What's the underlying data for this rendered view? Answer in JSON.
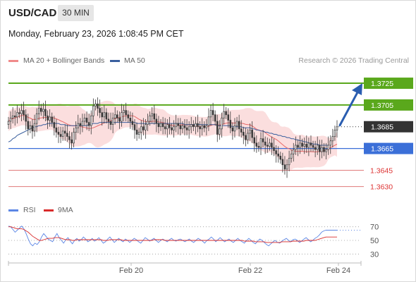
{
  "header": {
    "symbol": "USD/CAD",
    "timeframe": "30 MIN",
    "datetime": "Monday, February 23, 2026 1:08:45 PM CET"
  },
  "legend": {
    "ma20_label": "MA 20 + Bollinger Bands",
    "ma50_label": "MA 50",
    "credit": "Research © 2026 Trading Central"
  },
  "rsi_legend": {
    "rsi_label": "RSI",
    "ma_label": "9MA"
  },
  "colors": {
    "resistance": "#5aa81c",
    "support": "#3b6fd8",
    "minor_support": "#e07a7a",
    "current": "#333333",
    "candle": "#3a3a3a",
    "ma20": "#e86a6a",
    "ma50": "#3a5f9e",
    "bands": "#fbdada",
    "rsi": "#5b86e5",
    "rsi_ma": "#d92a2a",
    "arrow": "#2a5db0"
  },
  "chart_data": [
    {
      "type": "candlestick",
      "title": "USD/CAD 30 MIN",
      "ylim": [
        1.362,
        1.3738
      ],
      "x_ticks": [
        "Feb 20",
        "Feb 22",
        "Feb 24"
      ],
      "levels": [
        {
          "value": 1.3725,
          "label": "1.3725",
          "kind": "resistance",
          "style": "label"
        },
        {
          "value": 1.3705,
          "label": "1.3705",
          "kind": "resistance",
          "style": "label"
        },
        {
          "value": 1.3685,
          "label": "1.3685",
          "kind": "current",
          "style": "label"
        },
        {
          "value": 1.3665,
          "label": "1.3665",
          "kind": "support",
          "style": "label"
        },
        {
          "value": 1.3645,
          "label": "1.3645",
          "kind": "minor_support",
          "style": "text"
        },
        {
          "value": 1.363,
          "label": "1.3630",
          "kind": "minor_support",
          "style": "text"
        }
      ],
      "candles_close": [
        1.369,
        1.3693,
        1.3695,
        1.3694,
        1.3698,
        1.3697,
        1.37,
        1.3696,
        1.369,
        1.3683,
        1.3686,
        1.3681,
        1.3688,
        1.3697,
        1.3702,
        1.3699,
        1.3701,
        1.3695,
        1.3691,
        1.3694,
        1.3689,
        1.3684,
        1.368,
        1.3678,
        1.3676,
        1.3681,
        1.3679,
        1.3676,
        1.3673,
        1.367,
        1.368,
        1.3684,
        1.3688,
        1.3686,
        1.369,
        1.3693,
        1.3689,
        1.3686,
        1.3695,
        1.3704,
        1.3706,
        1.3702,
        1.3698,
        1.3694,
        1.3698,
        1.3692,
        1.369,
        1.3687,
        1.3693,
        1.3696,
        1.3693,
        1.369,
        1.3698,
        1.37,
        1.3696,
        1.3693,
        1.369,
        1.3687,
        1.3682,
        1.3678,
        1.368,
        1.3685,
        1.3682,
        1.3687,
        1.369,
        1.3695,
        1.3697,
        1.3692,
        1.3688,
        1.3685,
        1.3688,
        1.3685,
        1.3683,
        1.3687,
        1.3684,
        1.3682,
        1.3685,
        1.3688,
        1.3686,
        1.3683,
        1.3686,
        1.3684,
        1.3682,
        1.3685,
        1.3687,
        1.3685,
        1.3688,
        1.3685,
        1.3683,
        1.3686,
        1.3684,
        1.3686,
        1.3694,
        1.37,
        1.3696,
        1.369,
        1.3678,
        1.3683,
        1.3693,
        1.3699,
        1.3696,
        1.3691,
        1.3684,
        1.3681,
        1.3686,
        1.369,
        1.3683,
        1.368,
        1.3677,
        1.3673,
        1.3679,
        1.3682,
        1.3675,
        1.367,
        1.3667,
        1.3666,
        1.3674,
        1.3671,
        1.3668,
        1.3667,
        1.367,
        1.3666,
        1.3663,
        1.366,
        1.3658,
        1.3655,
        1.365,
        1.3646,
        1.365,
        1.3656,
        1.366,
        1.3664,
        1.3668,
        1.3666,
        1.367,
        1.3667,
        1.3669,
        1.3666,
        1.367,
        1.3668,
        1.3666,
        1.3664,
        1.3668,
        1.3662,
        1.3666,
        1.3662,
        1.3664,
        1.3668,
        1.3672,
        1.3676,
        1.3682,
        1.3685
      ],
      "ma50": [
        1.3671,
        1.3672,
        1.3674,
        1.3675,
        1.3677,
        1.3678,
        1.3679,
        1.368,
        1.3681,
        1.3682,
        1.3683,
        1.3684,
        1.3685,
        1.3685,
        1.3686,
        1.3686,
        1.3687,
        1.3687,
        1.3688,
        1.3688,
        1.3688,
        1.3688,
        1.3688,
        1.3688,
        1.3687,
        1.3687,
        1.3687,
        1.3686,
        1.3686,
        1.3686,
        1.3686,
        1.3686,
        1.3686,
        1.3686,
        1.3686,
        1.3686,
        1.3686,
        1.3687,
        1.3687,
        1.3688,
        1.3688,
        1.3688,
        1.3689,
        1.3689,
        1.3689,
        1.3689,
        1.3689,
        1.3689,
        1.3689,
        1.3689,
        1.3689,
        1.3689,
        1.3689,
        1.3689,
        1.3689,
        1.3689,
        1.3689,
        1.3689,
        1.3689,
        1.3688,
        1.3688,
        1.3688,
        1.3688,
        1.3688,
        1.3688,
        1.3688,
        1.3688,
        1.3688,
        1.3688,
        1.3688,
        1.3688,
        1.3688,
        1.3688,
        1.3688,
        1.3688,
        1.3688,
        1.3688,
        1.3688,
        1.3688,
        1.3688,
        1.3688,
        1.3687,
        1.3687,
        1.3687,
        1.3687,
        1.3687,
        1.3687,
        1.3687,
        1.3687,
        1.3687,
        1.3687,
        1.3687,
        1.3687,
        1.3687,
        1.3687,
        1.3687,
        1.3686,
        1.3686,
        1.3686,
        1.3686,
        1.3686,
        1.3686,
        1.3686,
        1.3685,
        1.3685,
        1.3685,
        1.3685,
        1.3685,
        1.3684,
        1.3684,
        1.3684,
        1.3684,
        1.3683,
        1.3683,
        1.3682,
        1.3682,
        1.3681,
        1.3681,
        1.368,
        1.368,
        1.3679,
        1.3679,
        1.3678,
        1.3678,
        1.3677,
        1.3677,
        1.3676,
        1.3676,
        1.3675,
        1.3675,
        1.3674,
        1.3674,
        1.3673,
        1.3673,
        1.3672,
        1.3672,
        1.3671,
        1.3671,
        1.367,
        1.367,
        1.3669,
        1.3669,
        1.3669,
        1.3668,
        1.3668,
        1.3668,
        1.3668,
        1.3668
      ]
    },
    {
      "type": "line",
      "title": "RSI",
      "ylim": [
        20,
        80
      ],
      "y_ticks": [
        70,
        50,
        30
      ],
      "series": [
        {
          "name": "RSI",
          "values": [
            71,
            70,
            66,
            62,
            65,
            68,
            71,
            67,
            60,
            52,
            45,
            42,
            46,
            44,
            48,
            55,
            60,
            56,
            52,
            50,
            48,
            55,
            60,
            54,
            50,
            46,
            51,
            54,
            49,
            45,
            50,
            53,
            49,
            51,
            55,
            52,
            48,
            50,
            53,
            49,
            51,
            54,
            50,
            46,
            48,
            52,
            55,
            51,
            47,
            50,
            53,
            50,
            48,
            52,
            50,
            47,
            50,
            53,
            51,
            48,
            46,
            50,
            54,
            52,
            49,
            51,
            53,
            50,
            47,
            50,
            52,
            50,
            48,
            51,
            53,
            50,
            49,
            51,
            52,
            50,
            48,
            50,
            52,
            49,
            47,
            50,
            53,
            51,
            49,
            46,
            50,
            52,
            55,
            52,
            48,
            51,
            54,
            51,
            48,
            50,
            52,
            49,
            47,
            50,
            53,
            50,
            48,
            46,
            50,
            53,
            50,
            47,
            45,
            49,
            52,
            50,
            47,
            44,
            42,
            45,
            48,
            50,
            47,
            46,
            49,
            51,
            53,
            50,
            48,
            51,
            52,
            50,
            47,
            49,
            52,
            54,
            51,
            48,
            50,
            53,
            55,
            58,
            62,
            64,
            65,
            65,
            65,
            65,
            65,
            65
          ]
        },
        {
          "name": "9MA",
          "values": [
            70,
            70,
            69,
            68,
            67,
            67,
            67,
            66,
            64,
            62,
            59,
            56,
            54,
            52,
            50,
            50,
            51,
            52,
            53,
            53,
            53,
            54,
            54,
            54,
            53,
            52,
            51,
            51,
            51,
            50,
            50,
            51,
            51,
            51,
            51,
            51,
            51,
            51,
            51,
            51,
            51,
            51,
            51,
            50,
            50,
            50,
            51,
            51,
            51,
            51,
            51,
            51,
            50,
            50,
            50,
            50,
            50,
            50,
            50,
            50,
            50,
            50,
            50,
            50,
            50,
            50,
            51,
            51,
            51,
            51,
            51,
            50,
            50,
            50,
            50,
            50,
            50,
            50,
            50,
            50,
            50,
            50,
            50,
            50,
            50,
            50,
            50,
            50,
            50,
            50,
            50,
            50,
            50,
            50,
            50,
            50,
            50,
            50,
            50,
            50,
            50,
            50,
            50,
            50,
            50,
            50,
            50,
            49,
            49,
            49,
            49,
            49,
            48,
            48,
            48,
            48,
            48,
            47,
            47,
            47,
            47,
            47,
            47,
            47,
            48,
            48,
            48,
            48,
            48,
            49,
            49,
            49,
            49,
            49,
            49,
            50,
            50,
            50,
            50,
            50,
            51,
            52,
            53,
            54,
            55,
            55,
            55,
            55,
            55,
            55
          ]
        }
      ]
    }
  ]
}
